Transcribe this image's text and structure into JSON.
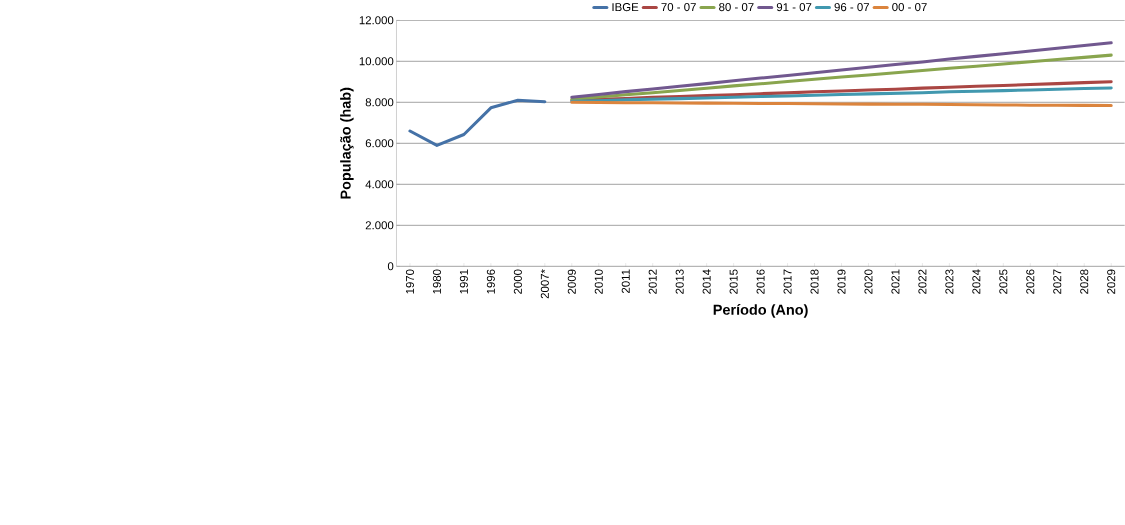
{
  "chart_data": {
    "type": "line",
    "xlabel": "Período (Ano)",
    "ylabel": "População (hab)",
    "categories": [
      "1970",
      "1980",
      "1991",
      "1996",
      "2000",
      "2007*",
      "2009",
      "2010",
      "2011",
      "2012",
      "2013",
      "2014",
      "2015",
      "2016",
      "2017",
      "2018",
      "2019",
      "2020",
      "2021",
      "2022",
      "2023",
      "2024",
      "2025",
      "2026",
      "2027",
      "2028",
      "2029"
    ],
    "series": [
      {
        "name": "IBGE",
        "color": "#4572a7",
        "values": [
          6600,
          5900,
          6430,
          7730,
          8100,
          8030,
          null,
          null,
          null,
          null,
          null,
          null,
          null,
          null,
          null,
          null,
          null,
          null,
          null,
          null,
          null,
          null,
          null,
          null,
          null,
          null,
          null
        ]
      },
      {
        "name": "70 - 07",
        "color": "#aa4643",
        "values": [
          null,
          null,
          null,
          null,
          null,
          null,
          8100,
          8150,
          8190,
          8240,
          8280,
          8330,
          8370,
          8420,
          8460,
          8510,
          8550,
          8600,
          8640,
          8690,
          8730,
          8780,
          8820,
          8870,
          8910,
          8960,
          9000
        ]
      },
      {
        "name": "80 - 07",
        "color": "#89a54e",
        "values": [
          null,
          null,
          null,
          null,
          null,
          null,
          8150,
          8260,
          8370,
          8470,
          8580,
          8690,
          8800,
          8900,
          9010,
          9120,
          9230,
          9330,
          9440,
          9550,
          9660,
          9760,
          9870,
          9980,
          10090,
          10190,
          10300
        ]
      },
      {
        "name": "91 - 07",
        "color": "#71588f",
        "values": [
          null,
          null,
          null,
          null,
          null,
          null,
          8250,
          8380,
          8520,
          8650,
          8780,
          8910,
          9050,
          9180,
          9310,
          9440,
          9580,
          9710,
          9840,
          9970,
          10110,
          10240,
          10370,
          10500,
          10640,
          10770,
          10900
        ]
      },
      {
        "name": "96 - 07",
        "color": "#4198af",
        "values": [
          null,
          null,
          null,
          null,
          null,
          null,
          8050,
          8080,
          8120,
          8150,
          8180,
          8210,
          8250,
          8280,
          8310,
          8340,
          8380,
          8410,
          8440,
          8470,
          8510,
          8540,
          8570,
          8600,
          8640,
          8670,
          8700
        ]
      },
      {
        "name": "00 - 07",
        "color": "#db843d",
        "values": [
          null,
          null,
          null,
          null,
          null,
          null,
          8000,
          7990,
          7980,
          7980,
          7970,
          7960,
          7950,
          7940,
          7940,
          7930,
          7920,
          7910,
          7900,
          7900,
          7890,
          7880,
          7870,
          7860,
          7860,
          7850,
          7840
        ]
      }
    ],
    "ylim": [
      0,
      12000
    ],
    "yticks": [
      0,
      {
        "value": 2000,
        "label": "2.000"
      },
      {
        "value": 4000,
        "label": "4.000"
      },
      {
        "value": 6000,
        "label": "6.000"
      },
      {
        "value": 8000,
        "label": "8.000"
      },
      {
        "value": 10000,
        "label": "10.000"
      },
      {
        "value": 12000,
        "label": "12.000"
      }
    ],
    "grid": "y",
    "legend": "top",
    "line_style": "solid"
  }
}
